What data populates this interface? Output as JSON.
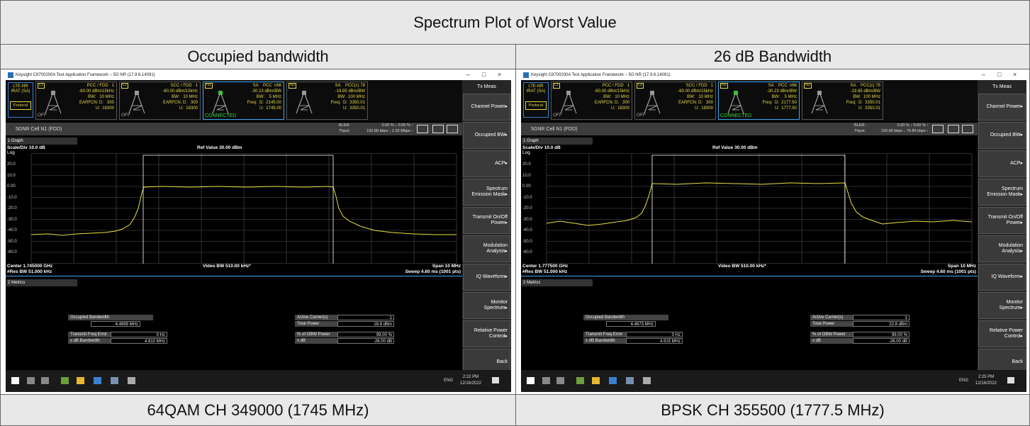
{
  "title": "Spectrum Plot of Worst Value",
  "columns": [
    {
      "header": "Occupied bandwidth",
      "caption": "64QAM CH 349000 (1745 MHz)",
      "screen": {
        "window_title": "Keysight C8700200A Test Application Framework – 5G NR (17.9.6.14091)",
        "window_controls": [
          "–",
          "□",
          "×"
        ],
        "irat": [
          "LTE-NR",
          "IRAT (SA)"
        ],
        "protocol": "Protocol",
        "cells": [
          {
            "id": "L1",
            "lines": [
              "PCC / FDD   1",
              "-60.00 dBm/15kHz",
              "BW:   10 MHz",
              "EARFCN: D:   300",
              "U:  18300"
            ],
            "state": "OFF"
          },
          {
            "id": "L2",
            "lines": [
              "SCC / FDD   1",
              "-60.00 dBm/15kHz",
              "BW:   10 MHz",
              "EARFCN: D:   300",
              "U:  18300"
            ],
            "state": "OFF"
          },
          {
            "id": "N1",
            "lines": [
              "SA    PCC  n66",
              "-30.23 dBm/BW",
              "BW:    5 MHz",
              "Freq:  D:  2145.00",
              "U:  1745.00"
            ],
            "state": "CONNECTED"
          },
          {
            "id": "N2",
            "lines": [
              "SA    PCC(c) 78",
              "-19.85 dBm/BW",
              "BW:  100 MHz",
              "Freq:  D:  3350.01",
              "U:  3350.01"
            ]
          }
        ],
        "menu_title": "Tx Meas",
        "menu": [
          "Channel Power▸",
          "Occupied BW▸",
          "ACP▸",
          "Spectrum\nEmission Mask▸",
          "Transmit On/Off\nPower▸",
          "Modulation\nAnalysis▸",
          "IQ Waveform▸",
          "Monitor\nSpectrum▸",
          "Relative Power\nControl▸",
          "Back"
        ],
        "cell_name": "5GNR Cell N1 (FDD)",
        "bler_label": "BLER:",
        "thput_label": "Thput:",
        "bler": "0.00 % ↓ 0.00 % ↑",
        "thput": "192.80 kbps ↓ 1.02 Mbps ↑",
        "graph_select": "1 Graph",
        "scale": "Scale/Div 10.0 dB",
        "log": "Log",
        "ref": "Ref Value 30.00 dBm",
        "y_labels": [
          "20.0",
          "10.0",
          "0.00",
          "-10.0",
          "-20.0",
          "-30.0",
          "-40.0",
          "-50.0",
          "-60.0"
        ],
        "center": "Center 1.745000 GHz",
        "vbw": "Video BW 510.00 kHz*",
        "span": "Span 10 MHz",
        "rbw": "#Res BW 51.000 kHz",
        "sweep": "Sweep 4.60 ms (1001 pts)",
        "metrics_select": "2 Metrics",
        "metrics_left": [
          {
            "label": "Occupied Bandwidth",
            "value": "4.4699 MHz"
          },
          {
            "label": "Transmit Freq Error",
            "value": "0 Hz"
          },
          {
            "label": "x dB Bandwidth",
            "value": "4.810 MHz"
          }
        ],
        "metrics_right": [
          {
            "label": "Active Carrier(s)",
            "value": "1"
          },
          {
            "label": "Total Power",
            "value": "18.8 dBm"
          },
          {
            "label": "% of OBW Power",
            "value": "99.00 %"
          },
          {
            "label": "x dB",
            "value": "-26.00 dB"
          }
        ],
        "lang": "ENG",
        "time": "2:22 PM",
        "date": "12/16/2022"
      }
    },
    {
      "header": "26 dB Bandwidth",
      "caption": "BPSK CH 355500 (1777.5 MHz)",
      "screen": {
        "window_title": "Keysight C8700200A Test Application Framework – 5G NR (17.9.6.14091)",
        "window_controls": [
          "–",
          "□",
          "×"
        ],
        "irat": [
          "LTE-NR",
          "IRAT (SA)"
        ],
        "protocol": "Protocol",
        "cells": [
          {
            "id": "L1",
            "lines": [
              "PCC / FDD   1",
              "-60.00 dBm/15kHz",
              "BW:   10 MHz",
              "EARFCN: D:   300",
              "U:  18300"
            ],
            "state": "OFF"
          },
          {
            "id": "L2",
            "lines": [
              "SCC / FDD   1",
              "-60.00 dBm/15kHz",
              "BW:   10 MHz",
              "EARFCN: D:   300",
              "U:  18300"
            ],
            "state": "OFF"
          },
          {
            "id": "N1",
            "lines": [
              "SA    PCC  n66",
              "-30.23 dBm/BW",
              "BW:    5 MHz",
              "Freq:  D:  2177.50",
              "U:  1777.50"
            ],
            "state": "CONNECTED"
          },
          {
            "id": "N2",
            "lines": [
              "SA    PCC(c) 78",
              "-19.85 dBm/BW",
              "BW:  100 MHz",
              "Freq:  D:  3350.01",
              "U:  3350.01"
            ]
          }
        ],
        "menu_title": "Tx Meas",
        "menu": [
          "Channel Power▸",
          "Occupied BW▸",
          "ACP▸",
          "Spectrum\nEmission Mask▸",
          "Transmit On/Off\nPower▸",
          "Modulation\nAnalysis▸",
          "IQ Waveform▸",
          "Monitor\nSpectrum▸",
          "Relative Power\nControl▸",
          "Back"
        ],
        "cell_name": "5GNR Cell N1 (FDD)",
        "bler_label": "BLER:",
        "thput_label": "Thput:",
        "bler": "0.00 % ↓ 0.00 % ↑",
        "thput": "192.80 kbps ↓ 76.80 kbps ↑",
        "graph_select": "1 Graph",
        "scale": "Scale/Div 10.0 dB",
        "log": "Log",
        "ref": "Ref Value 30.00 dBm",
        "y_labels": [
          "20.0",
          "10.0",
          "0.00",
          "-10.0",
          "-20.0",
          "-30.0",
          "-40.0",
          "-50.0",
          "-60.0"
        ],
        "center": "Center 1.777500 GHz",
        "vbw": "Video BW 510.00 kHz*",
        "span": "Span 10 MHz",
        "rbw": "#Res BW 51.000 kHz",
        "sweep": "Sweep 4.60 ms (1001 pts)",
        "metrics_select": "2 Metrics",
        "metrics_left": [
          {
            "label": "Occupied Bandwidth",
            "value": "4.4673 MHz"
          },
          {
            "label": "Transmit Freq Error",
            "value": "0 Hz"
          },
          {
            "label": "x dB Bandwidth",
            "value": "4.915 MHz"
          }
        ],
        "metrics_right": [
          {
            "label": "Active Carrier(s)",
            "value": "1"
          },
          {
            "label": "Total Power",
            "value": "22.8 dBm"
          },
          {
            "label": "% of OBW Power",
            "value": "99.00 %"
          },
          {
            "label": "x dB",
            "value": "-26.00 dB"
          }
        ],
        "lang": "ENG",
        "time": "2:25 PM",
        "date": "12/16/2022"
      }
    }
  ]
}
